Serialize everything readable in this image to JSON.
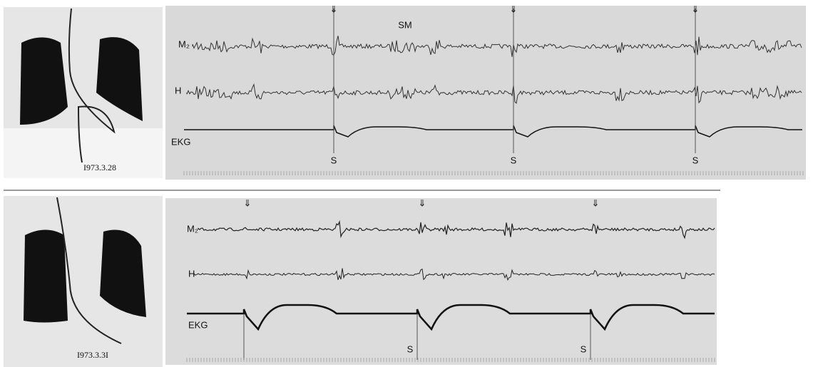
{
  "panels": [
    {
      "date": "I973.3.28",
      "labels": {
        "m2": "M₂",
        "h": "H",
        "ekg": "EKG",
        "sm": "SM"
      },
      "s_markers": [
        "S",
        "S",
        "S"
      ]
    },
    {
      "date": "I973.3.3I",
      "labels": {
        "m2": "M₂",
        "h": "H",
        "ekg": "EKG"
      },
      "s_markers": [
        "S",
        "S"
      ]
    }
  ]
}
